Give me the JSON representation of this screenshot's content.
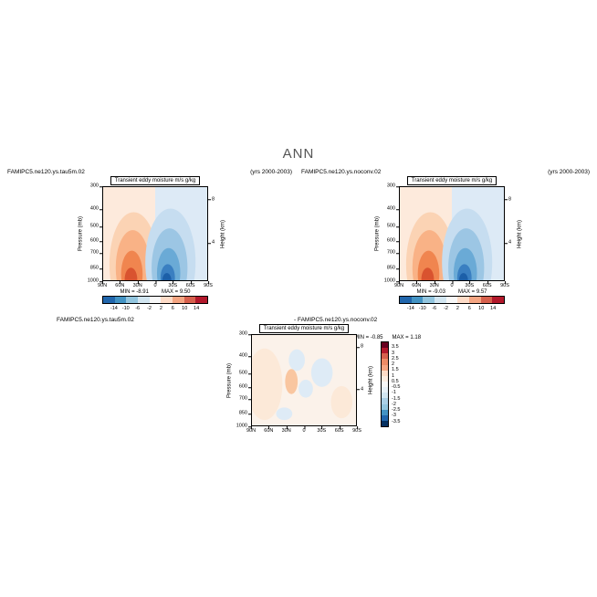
{
  "page": {
    "title": "ANN"
  },
  "header": {
    "case1_name": "FAMIPC5.ne120.ys.tau5m.02",
    "case1_years": "(yrs 2000-2003)",
    "case2_name": "FAMIPC5.ne120.ys.noconv.02",
    "case2_years": "(yrs 2000-2003)"
  },
  "diff_header": {
    "case1_name": "FAMIPC5.ne120.ys.tau5m.02",
    "minus_case2": "- FAMIPC5.ne120.ys.noconv.02"
  },
  "axes": {
    "pressure_label": "Pressure (mb)",
    "height_label": "Height (km)",
    "pressure_ticks": [
      {
        "label": "300",
        "pos": 0.0
      },
      {
        "label": "400",
        "pos": 0.239
      },
      {
        "label": "500",
        "pos": 0.424
      },
      {
        "label": "600",
        "pos": 0.576
      },
      {
        "label": "700",
        "pos": 0.704
      },
      {
        "label": "850",
        "pos": 0.865
      },
      {
        "label": "1000",
        "pos": 1.0
      }
    ],
    "height_ticks": [
      {
        "label": "8",
        "pos": 0.14
      },
      {
        "label": "4",
        "pos": 0.6
      }
    ],
    "lat_ticks": [
      {
        "label": "90N",
        "pos": 0.0
      },
      {
        "label": "60N",
        "pos": 0.1667
      },
      {
        "label": "30N",
        "pos": 0.3333
      },
      {
        "label": "0",
        "pos": 0.5
      },
      {
        "label": "30S",
        "pos": 0.6667
      },
      {
        "label": "60S",
        "pos": 0.8333
      },
      {
        "label": "90S",
        "pos": 1.0
      }
    ]
  },
  "panels": [
    {
      "title": "Transient eddy moisture m/s g/kg",
      "min_label": "MIN =  -8.91",
      "max_label": "MAX =   9.50"
    },
    {
      "title": "Transient eddy moisture m/s g/kg",
      "min_label": "MIN =  -9.03",
      "max_label": "MAX =   9.57"
    },
    {
      "title": "Transient eddy moisture m/s g/kg",
      "min_label": "MIN =  -0.85",
      "max_label": "MAX =   1.18"
    }
  ],
  "colorbars": {
    "top": {
      "labels": [
        "-14",
        "-10",
        "-6",
        "-2",
        "2",
        "6",
        "10",
        "14"
      ],
      "colors": [
        "#2166ac",
        "#4393c3",
        "#92c5de",
        "#d1e5f0",
        "#f7f7f7",
        "#fddbc7",
        "#f4a582",
        "#d6604d",
        "#b2182b"
      ]
    },
    "diff": {
      "labels": [
        "3.5",
        "3",
        "2.5",
        "2",
        "1.5",
        "1",
        "0.5",
        "-0.5",
        "-1",
        "-1.5",
        "-2",
        "-2.5",
        "-3",
        "-3.5"
      ],
      "colors": [
        "#67001f",
        "#b2182b",
        "#d6604d",
        "#ec8b66",
        "#f4a582",
        "#fddbc7",
        "#fcece0",
        "#f7f7f7",
        "#e7f0f7",
        "#d1e5f0",
        "#abd0e6",
        "#92c5de",
        "#4393c3",
        "#2166ac",
        "#053061"
      ]
    }
  },
  "palette": {
    "bg_warm": "#fdeadc",
    "bg_cool": "#ddeaf6",
    "warm1": "#fbd3b4",
    "warm2": "#f9b286",
    "warm3": "#f0854f",
    "warm4": "#d9532f",
    "cool1": "#c6ddf0",
    "cool2": "#9cc6e4",
    "cool3": "#6aaad6",
    "cool4": "#3a7fc1",
    "cool5": "#1c5fa8",
    "diff_bg": "#fbf2ea",
    "diff_warm_light": "#fce9d8",
    "diff_warm": "#f9c6a0",
    "diff_cool_light": "#deebf6",
    "diff_cool": "#bcd8ee"
  },
  "chart_data": [
    {
      "type": "contour",
      "panel": "top-left",
      "title": "Transient eddy moisture m/s g/kg",
      "case": "FAMIPC5.ne120.ys.tau5m.02",
      "years": "(yrs 2000-2003)",
      "x_ticks": [
        "90N",
        "60N",
        "30N",
        "0",
        "30S",
        "60S",
        "90S"
      ],
      "y_left_label": "Pressure (mb)",
      "y_left_ticks_mb": [
        300,
        400,
        500,
        600,
        700,
        850,
        1000
      ],
      "y_right_label": "Height (km)",
      "y_right_ticks_km": [
        8,
        4
      ],
      "y_scale": "log pressure, 1000 mb at bottom to 300 mb at top",
      "contour_levels": [
        -14,
        -10,
        -6,
        -2,
        2,
        6,
        10,
        14
      ],
      "min": -8.91,
      "max": 9.5,
      "colorbar_position": "bottom",
      "grid": {
        "latitudes": [
          "90N",
          "60N",
          "30N",
          "0",
          "30S",
          "60S",
          "90S"
        ],
        "pressure_mb": [
          300,
          400,
          500,
          600,
          700,
          850,
          1000
        ],
        "values": [
          [
            0.0,
            0.3,
            0.8,
            0.2,
            -0.8,
            -0.3,
            0.0
          ],
          [
            0.0,
            0.8,
            2.0,
            0.5,
            -2.0,
            -0.8,
            0.0
          ],
          [
            0.1,
            1.5,
            3.5,
            0.8,
            -3.5,
            -1.2,
            -0.1
          ],
          [
            0.2,
            2.5,
            5.0,
            1.0,
            -5.0,
            -1.8,
            -0.2
          ],
          [
            0.3,
            3.5,
            6.5,
            1.2,
            -6.5,
            -2.5,
            -0.3
          ],
          [
            0.5,
            5.0,
            9.5,
            1.5,
            -8.91,
            -3.5,
            -0.5
          ],
          [
            0.4,
            4.0,
            8.0,
            1.0,
            -7.5,
            -3.0,
            -0.4
          ]
        ]
      }
    },
    {
      "type": "contour",
      "panel": "top-right",
      "title": "Transient eddy moisture m/s g/kg",
      "case": "FAMIPC5.ne120.ys.noconv.02",
      "years": "(yrs 2000-2003)",
      "x_ticks": [
        "90N",
        "60N",
        "30N",
        "0",
        "30S",
        "60S",
        "90S"
      ],
      "y_left_label": "Pressure (mb)",
      "y_left_ticks_mb": [
        300,
        400,
        500,
        600,
        700,
        850,
        1000
      ],
      "y_right_label": "Height (km)",
      "y_right_ticks_km": [
        8,
        4
      ],
      "y_scale": "log pressure, 1000 mb at bottom to 300 mb at top",
      "contour_levels": [
        -14,
        -10,
        -6,
        -2,
        2,
        6,
        10,
        14
      ],
      "min": -9.03,
      "max": 9.57,
      "colorbar_position": "bottom",
      "grid": {
        "latitudes": [
          "90N",
          "60N",
          "30N",
          "0",
          "30S",
          "60S",
          "90S"
        ],
        "pressure_mb": [
          300,
          400,
          500,
          600,
          700,
          850,
          1000
        ],
        "values": [
          [
            0.0,
            0.3,
            0.8,
            0.2,
            -0.8,
            -0.3,
            0.0
          ],
          [
            0.0,
            0.8,
            2.1,
            0.5,
            -2.1,
            -0.8,
            0.0
          ],
          [
            0.1,
            1.5,
            3.6,
            0.8,
            -3.6,
            -1.2,
            -0.1
          ],
          [
            0.2,
            2.5,
            5.1,
            1.0,
            -5.1,
            -1.8,
            -0.2
          ],
          [
            0.3,
            3.5,
            6.6,
            1.2,
            -6.6,
            -2.5,
            -0.3
          ],
          [
            0.5,
            5.0,
            9.57,
            1.5,
            -9.03,
            -3.5,
            -0.5
          ],
          [
            0.4,
            4.0,
            8.1,
            1.0,
            -7.6,
            -3.0,
            -0.4
          ]
        ]
      }
    },
    {
      "type": "contour",
      "panel": "bottom-difference",
      "title": "Transient eddy moisture m/s g/kg",
      "case": "FAMIPC5.ne120.ys.tau5m.02 - FAMIPC5.ne120.ys.noconv.02",
      "x_ticks": [
        "90N",
        "60N",
        "30N",
        "0",
        "30S",
        "60S",
        "90S"
      ],
      "y_left_label": "Pressure (mb)",
      "y_left_ticks_mb": [
        300,
        400,
        500,
        600,
        700,
        850,
        1000
      ],
      "y_right_label": "Height (km)",
      "y_right_ticks_km": [
        8,
        4
      ],
      "y_scale": "log pressure, 1000 mb at bottom to 300 mb at top",
      "contour_levels": [
        -3.5,
        -3,
        -2.5,
        -2,
        -1.5,
        -1,
        -0.5,
        0.5,
        1,
        1.5,
        2,
        2.5,
        3,
        3.5
      ],
      "min": -0.85,
      "max": 1.18,
      "colorbar_position": "right",
      "grid": {
        "latitudes": [
          "90N",
          "60N",
          "30N",
          "0",
          "30S",
          "60S",
          "90S"
        ],
        "pressure_mb": [
          300,
          400,
          500,
          600,
          700,
          850,
          1000
        ],
        "values": [
          [
            0.0,
            0.1,
            0.1,
            -0.1,
            0.0,
            0.0,
            0.0
          ],
          [
            0.1,
            0.2,
            -0.2,
            -0.3,
            0.1,
            0.0,
            0.0
          ],
          [
            0.1,
            0.3,
            -0.3,
            0.2,
            -0.2,
            0.1,
            0.0
          ],
          [
            0.2,
            0.4,
            0.5,
            -0.2,
            -0.3,
            0.1,
            0.0
          ],
          [
            0.1,
            0.5,
            0.3,
            0.2,
            -0.4,
            0.2,
            0.1
          ],
          [
            0.2,
            0.6,
            1.18,
            -0.85,
            -0.3,
            0.3,
            0.1
          ],
          [
            0.1,
            0.4,
            0.8,
            -0.5,
            -0.2,
            0.2,
            0.1
          ]
        ]
      }
    }
  ]
}
